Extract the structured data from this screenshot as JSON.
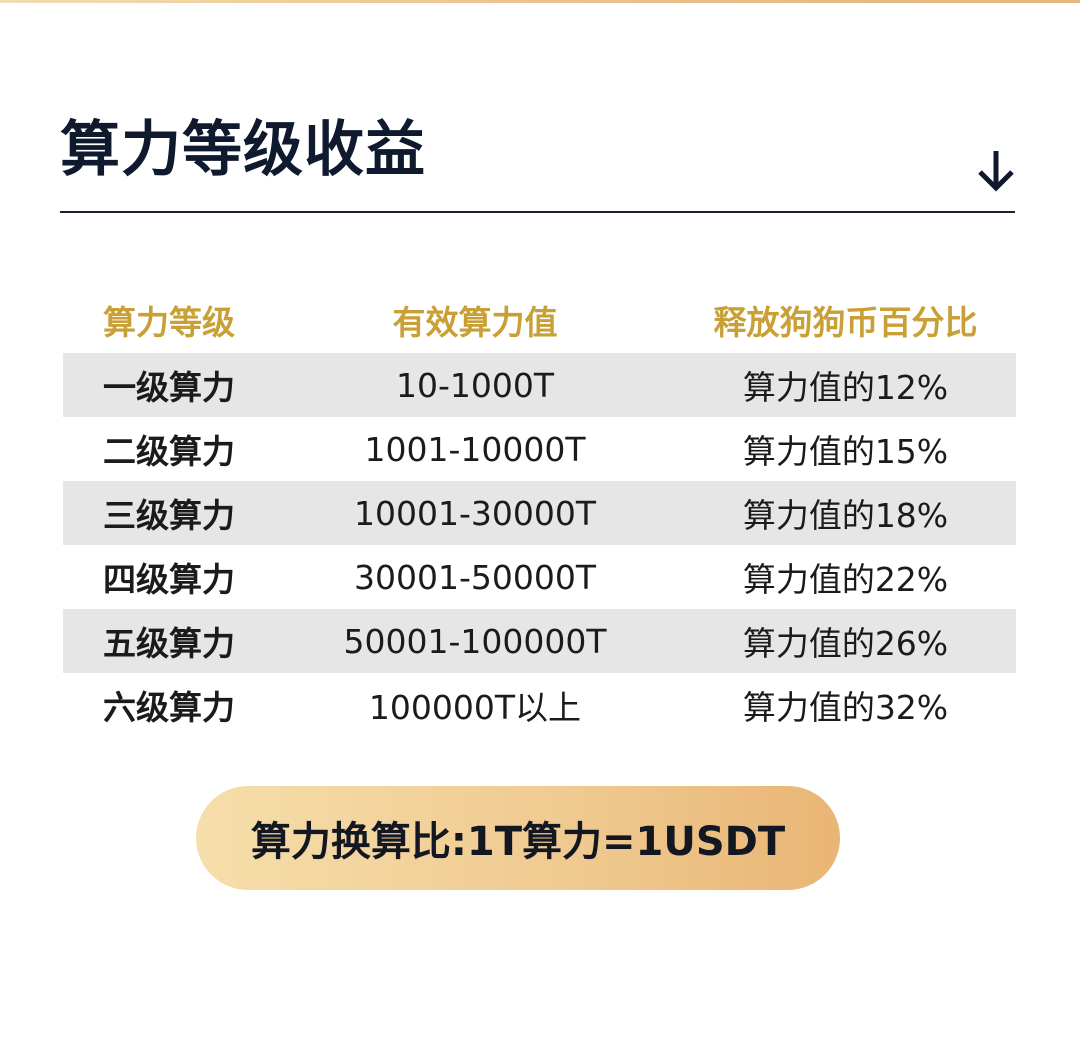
{
  "title": "算力等级收益",
  "icons": {
    "arrow": "arrow-down-icon"
  },
  "colors": {
    "header_text": "#c8a036",
    "title": "#0f1a2e",
    "row_shade": "#e6e6e6",
    "pill_start": "#f6deaa",
    "pill_end": "#e9b574"
  },
  "table": {
    "headers": [
      "算力等级",
      "有效算力值",
      "释放狗狗币百分比"
    ],
    "rows": [
      [
        "一级算力",
        "10-1000T",
        "算力值的12%"
      ],
      [
        "二级算力",
        "1001-10000T",
        "算力值的15%"
      ],
      [
        "三级算力",
        "10001-30000T",
        "算力值的18%"
      ],
      [
        "四级算力",
        "30001-50000T",
        "算力值的22%"
      ],
      [
        "五级算力",
        "50001-100000T",
        "算力值的26%"
      ],
      [
        "六级算力",
        "100000T以上",
        "算力值的32%"
      ]
    ]
  },
  "conversion": "算力换算比:1T算力=1USDT"
}
